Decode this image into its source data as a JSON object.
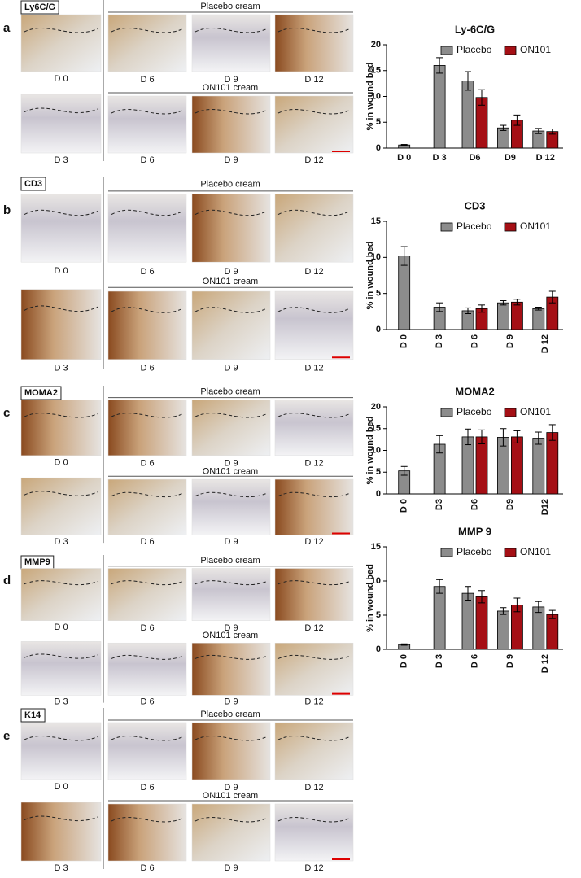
{
  "panels": [
    {
      "letter": "a",
      "stain": "Ly6C/G",
      "left_days": [
        "D 0",
        "D 3"
      ],
      "groups": [
        {
          "title": "Placebo cream",
          "days": [
            "D 6",
            "D 9",
            "D 12"
          ]
        },
        {
          "title": "ON101 cream",
          "days": [
            "D 6",
            "D 9",
            "D 12"
          ]
        }
      ]
    },
    {
      "letter": "b",
      "stain": "CD3",
      "left_days": [
        "D 0",
        "D 3"
      ],
      "groups": [
        {
          "title": "Placebo cream",
          "days": [
            "D 6",
            "D 9",
            "D 12"
          ]
        },
        {
          "title": "ON101 cream",
          "days": [
            "D 6",
            "D 9",
            "D 12"
          ]
        }
      ]
    },
    {
      "letter": "c",
      "stain": "MOMA2",
      "left_days": [
        "D 0",
        "D 3"
      ],
      "groups": [
        {
          "title": "Placebo cream",
          "days": [
            "D 6",
            "D 9",
            "D 12"
          ]
        },
        {
          "title": "ON101 cream",
          "days": [
            "D 6",
            "D 9",
            "D 12"
          ]
        }
      ]
    },
    {
      "letter": "d",
      "stain": "MMP9",
      "left_days": [
        "D 0",
        "D 3"
      ],
      "groups": [
        {
          "title": "Placebo cream",
          "days": [
            "D 6",
            "D 9",
            "D 12"
          ]
        },
        {
          "title": "ON101 cream",
          "days": [
            "D 6",
            "D 9",
            "D 12"
          ]
        }
      ]
    },
    {
      "letter": "e",
      "stain": "K14",
      "left_days": [
        "D 0",
        "D 3"
      ],
      "groups": [
        {
          "title": "Placebo cream",
          "days": [
            "D 6",
            "D 9",
            "D 12"
          ]
        },
        {
          "title": "ON101 cream",
          "days": [
            "D 6",
            "D 9",
            "D 12"
          ]
        }
      ]
    }
  ],
  "chart_data": [
    {
      "type": "bar",
      "title": "Ly-6C/G",
      "y_label": "% in wound bed",
      "categories": [
        "D 0",
        "D 3",
        "D6",
        "D9",
        "D 12"
      ],
      "x_label_rotation": 0,
      "series": [
        {
          "name": "Placebo",
          "color": "#8c8c8c",
          "values": [
            0.6,
            16,
            13,
            3.9,
            3.3
          ],
          "errors": [
            0.1,
            1.5,
            1.8,
            0.5,
            0.5
          ]
        },
        {
          "name": "ON101",
          "color": "#a50f15",
          "values": [
            null,
            null,
            9.8,
            5.4,
            3.2
          ],
          "errors": [
            null,
            null,
            1.5,
            1.0,
            0.5
          ]
        }
      ],
      "ylim": [
        0,
        20
      ],
      "yticks": [
        0,
        5,
        10,
        15,
        20
      ],
      "legend": "top-right",
      "grid": false
    },
    {
      "type": "bar",
      "title": "CD3",
      "y_label": "% in wound bed",
      "categories": [
        "D 0",
        "D 3",
        "D 6",
        "D 9",
        "D 12"
      ],
      "x_label_rotation": 90,
      "series": [
        {
          "name": "Placebo",
          "color": "#8c8c8c",
          "values": [
            10.2,
            3.1,
            2.6,
            3.7,
            2.9
          ],
          "errors": [
            1.3,
            0.6,
            0.4,
            0.3,
            0.2
          ]
        },
        {
          "name": "ON101",
          "color": "#a50f15",
          "values": [
            null,
            null,
            2.9,
            3.8,
            4.5
          ],
          "errors": [
            null,
            null,
            0.5,
            0.4,
            0.8
          ]
        }
      ],
      "ylim": [
        0,
        15
      ],
      "yticks": [
        0,
        5,
        10,
        15
      ],
      "legend": "top-right",
      "grid": false
    },
    {
      "type": "bar",
      "title": "MOMA2",
      "y_label": "% in wound bed",
      "categories": [
        "D 0",
        "D3",
        "D6",
        "D9",
        "D12"
      ],
      "x_label_rotation": 90,
      "series": [
        {
          "name": "Placebo",
          "color": "#8c8c8c",
          "values": [
            5.3,
            11.4,
            13.1,
            13.0,
            12.8
          ],
          "errors": [
            1.0,
            2.0,
            1.8,
            2.0,
            1.4
          ]
        },
        {
          "name": "ON101",
          "color": "#a50f15",
          "values": [
            null,
            null,
            13.1,
            13.1,
            14.1
          ],
          "errors": [
            null,
            null,
            1.6,
            1.4,
            1.8
          ]
        }
      ],
      "ylim": [
        0,
        20
      ],
      "yticks": [
        0,
        5,
        10,
        15,
        20
      ],
      "legend": "top-right",
      "grid": false
    },
    {
      "type": "bar",
      "title": "MMP 9",
      "y_label": "% in wound bed",
      "categories": [
        "D 0",
        "D 3",
        "D 6",
        "D 9",
        "D 12"
      ],
      "x_label_rotation": 90,
      "series": [
        {
          "name": "Placebo",
          "color": "#8c8c8c",
          "values": [
            0.7,
            9.2,
            8.2,
            5.6,
            6.2
          ],
          "errors": [
            0.1,
            1.0,
            1.0,
            0.5,
            0.8
          ]
        },
        {
          "name": "ON101",
          "color": "#a50f15",
          "values": [
            null,
            null,
            7.7,
            6.5,
            5.1
          ],
          "errors": [
            null,
            null,
            0.9,
            1.0,
            0.6
          ]
        }
      ],
      "ylim": [
        0,
        15
      ],
      "yticks": [
        0,
        5,
        10,
        15
      ],
      "legend": "top-right",
      "grid": false
    }
  ]
}
